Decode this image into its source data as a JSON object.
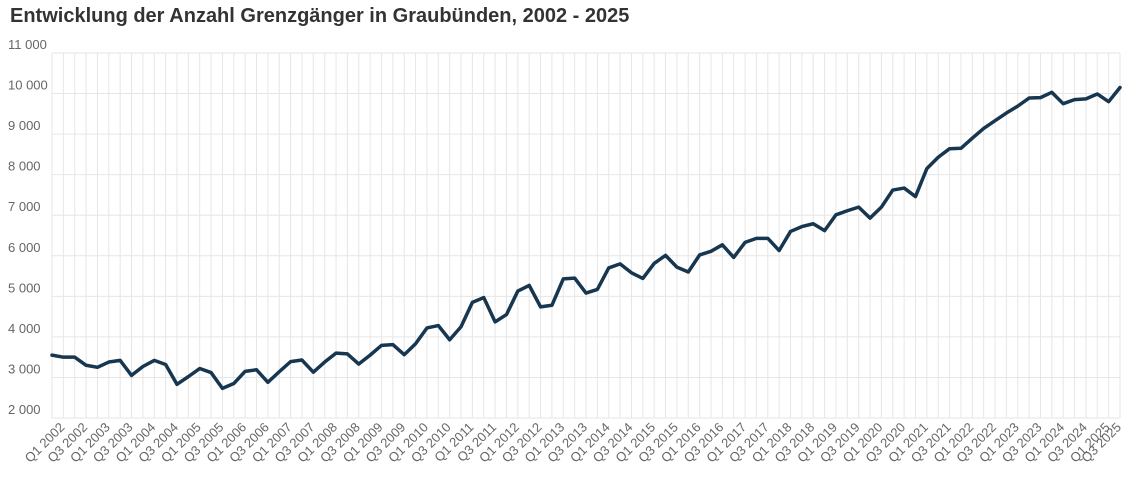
{
  "chart_data": {
    "type": "line",
    "title": "Entwicklung der Anzahl Grenzgänger in Graubünden, 2002 - 2025",
    "xlabel": "",
    "ylabel": "",
    "ylim": [
      2000,
      11000
    ],
    "yticks": [
      2000,
      3000,
      4000,
      5000,
      6000,
      7000,
      8000,
      9000,
      10000,
      11000
    ],
    "ytick_labels": [
      "2 000",
      "3 000",
      "4 000",
      "5 000",
      "6 000",
      "7 000",
      "8 000",
      "9 000",
      "10 000",
      "11 000"
    ],
    "grid": true,
    "line_color": "#17364f",
    "x_labels": [
      "Q1 2002",
      "Q3 2002",
      "Q1 2003",
      "Q3 2003",
      "Q1 2004",
      "Q3 2004",
      "Q1 2005",
      "Q3 2005",
      "Q1 2006",
      "Q3 2006",
      "Q1 2007",
      "Q3 2007",
      "Q1 2008",
      "Q3 2008",
      "Q1 2009",
      "Q3 2009",
      "Q1 2010",
      "Q3 2010",
      "Q1 2011",
      "Q3 2011",
      "Q1 2012",
      "Q3 2012",
      "Q1 2013",
      "Q3 2013",
      "Q1 2014",
      "Q3 2014",
      "Q1 2015",
      "Q3 2015",
      "Q1 2016",
      "Q3 2016",
      "Q1 2017",
      "Q3 2017",
      "Q1 2018",
      "Q3 2018",
      "Q1 2019",
      "Q3 2019",
      "Q1 2020",
      "Q3 2020",
      "Q1 2021",
      "Q3 2021",
      "Q1 2022",
      "Q3 2022",
      "Q1 2023",
      "Q3 2023",
      "Q1 2024",
      "Q3 2024",
      "Q1 2025",
      "Q3 2025"
    ],
    "series": [
      {
        "values": [
          3550,
          3500,
          3500,
          3300,
          3250,
          3380,
          3420,
          3050,
          3270,
          3420,
          3320,
          2830,
          3020,
          3220,
          3120,
          2730,
          2850,
          3150,
          3190,
          2880,
          3140,
          3390,
          3430,
          3130,
          3380,
          3600,
          3580,
          3330,
          3550,
          3790,
          3810,
          3560,
          3830,
          4220,
          4280,
          3930,
          4250,
          4850,
          4970,
          4370,
          4550,
          5130,
          5270,
          4740,
          4780,
          5430,
          5450,
          5080,
          5170,
          5700,
          5800,
          5580,
          5440,
          5810,
          6010,
          5720,
          5600,
          6020,
          6110,
          6270,
          5960,
          6330,
          6430,
          6430,
          6130,
          6600,
          6720,
          6790,
          6620,
          7010,
          7110,
          7200,
          6930,
          7200,
          7620,
          7670,
          7460,
          8150,
          8430,
          8640,
          8650,
          8900,
          9140,
          9330,
          9520,
          9690,
          9890,
          9900,
          10030,
          9750,
          9850,
          9870,
          9990,
          9800,
          10150
        ]
      }
    ]
  }
}
